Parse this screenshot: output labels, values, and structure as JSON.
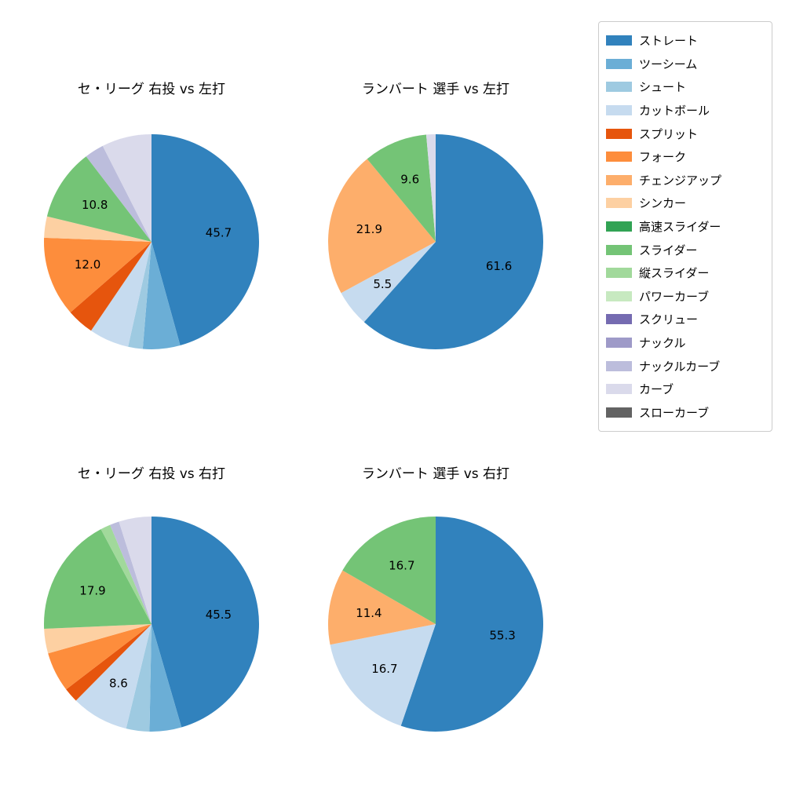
{
  "figure": {
    "background": "#ffffff",
    "label_color": "#000000"
  },
  "legend": {
    "position": "upper-right",
    "border_color": "#cccccc",
    "entries": [
      {
        "label": "ストレート",
        "color": "#3182bd"
      },
      {
        "label": "ツーシーム",
        "color": "#6baed6"
      },
      {
        "label": "シュート",
        "color": "#9ecae1"
      },
      {
        "label": "カットボール",
        "color": "#c6dbef"
      },
      {
        "label": "スプリット",
        "color": "#e6550d"
      },
      {
        "label": "フォーク",
        "color": "#fd8d3c"
      },
      {
        "label": "チェンジアップ",
        "color": "#fdae6b"
      },
      {
        "label": "シンカー",
        "color": "#fdd0a2"
      },
      {
        "label": "高速スライダー",
        "color": "#31a354"
      },
      {
        "label": "スライダー",
        "color": "#74c476"
      },
      {
        "label": "縦スライダー",
        "color": "#a1d99b"
      },
      {
        "label": "パワーカーブ",
        "color": "#c7e9c0"
      },
      {
        "label": "スクリュー",
        "color": "#756bb1"
      },
      {
        "label": "ナックル",
        "color": "#9e9ac8"
      },
      {
        "label": "ナックルカーブ",
        "color": "#bcbddc"
      },
      {
        "label": "カーブ",
        "color": "#dadaeb"
      },
      {
        "label": "スローカーブ",
        "color": "#636363"
      }
    ]
  },
  "chart_data": [
    {
      "type": "pie",
      "title": "セ・リーグ 右投 vs 左打",
      "start_angle": "top",
      "direction": "clockwise",
      "pct_label_radius": 0.63,
      "slices": [
        {
          "label": "ストレート",
          "value": 45.7,
          "display": "45.7"
        },
        {
          "label": "ツーシーム",
          "value": 5.6
        },
        {
          "label": "シュート",
          "value": 2.2
        },
        {
          "label": "カットボール",
          "value": 6.0
        },
        {
          "label": "スプリット",
          "value": 4.1
        },
        {
          "label": "フォーク",
          "value": 12.0,
          "display": "12.0"
        },
        {
          "label": "シンカー",
          "value": 3.2
        },
        {
          "label": "スライダー",
          "value": 10.8,
          "display": "10.8"
        },
        {
          "label": "ナックルカーブ",
          "value": 2.9
        },
        {
          "label": "カーブ",
          "value": 7.5
        }
      ]
    },
    {
      "type": "pie",
      "title": "ランバート 選手 vs 左打",
      "start_angle": "top",
      "direction": "clockwise",
      "pct_label_radius": 0.63,
      "slices": [
        {
          "label": "ストレート",
          "value": 61.6,
          "display": "61.6"
        },
        {
          "label": "カットボール",
          "value": 5.5,
          "display": "5.5"
        },
        {
          "label": "チェンジアップ",
          "value": 21.9,
          "display": "21.9"
        },
        {
          "label": "スライダー",
          "value": 9.6,
          "display": "9.6"
        },
        {
          "label": "カーブ",
          "value": 1.4
        }
      ]
    },
    {
      "type": "pie",
      "title": "セ・リーグ 右投 vs 右打",
      "start_angle": "top",
      "direction": "clockwise",
      "pct_label_radius": 0.63,
      "slices": [
        {
          "label": "ストレート",
          "value": 45.5,
          "display": "45.5"
        },
        {
          "label": "ツーシーム",
          "value": 4.8
        },
        {
          "label": "シュート",
          "value": 3.5
        },
        {
          "label": "カットボール",
          "value": 8.6,
          "display": "8.6"
        },
        {
          "label": "スプリット",
          "value": 2.2
        },
        {
          "label": "フォーク",
          "value": 6.0
        },
        {
          "label": "シンカー",
          "value": 3.7
        },
        {
          "label": "スライダー",
          "value": 17.9,
          "display": "17.9"
        },
        {
          "label": "縦スライダー",
          "value": 1.5
        },
        {
          "label": "ナックルカーブ",
          "value": 1.4
        },
        {
          "label": "カーブ",
          "value": 4.9
        }
      ]
    },
    {
      "type": "pie",
      "title": "ランバート 選手 vs 右打",
      "start_angle": "top",
      "direction": "clockwise",
      "pct_label_radius": 0.63,
      "slices": [
        {
          "label": "ストレート",
          "value": 55.3,
          "display": "55.3"
        },
        {
          "label": "カットボール",
          "value": 16.7,
          "display": "16.7"
        },
        {
          "label": "チェンジアップ",
          "value": 11.4,
          "display": "11.4"
        },
        {
          "label": "スライダー",
          "value": 16.7,
          "display": "16.7"
        }
      ]
    }
  ]
}
